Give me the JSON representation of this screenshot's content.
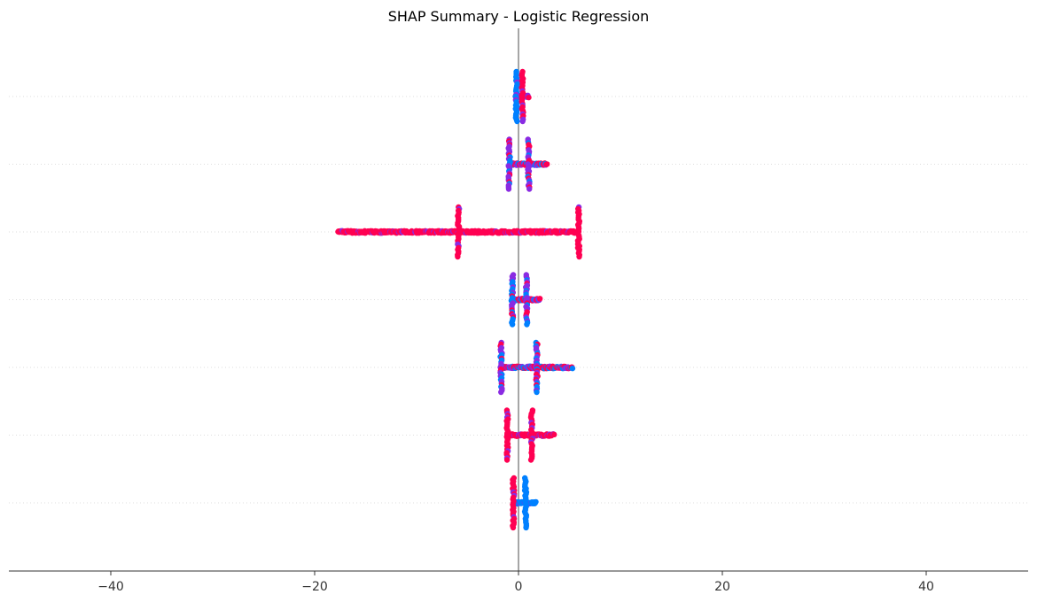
{
  "chart_data": {
    "type": "scatter",
    "title": "SHAP Summary - Logistic Regression",
    "xlabel": "",
    "ylabel": "",
    "xlim": [
      -50,
      50
    ],
    "x_ticks": [
      -40,
      -20,
      0,
      20,
      40
    ],
    "x_tick_labels": [
      "−40",
      "−20",
      "0",
      "20",
      "40"
    ],
    "feature_labels_visible": false,
    "grid": "dotted horizontal per feature row",
    "colors": {
      "high": "#ff0052",
      "mid": "#8a2be2",
      "low": "#0080ff",
      "zero_line": "#888888",
      "axis": "#333333"
    },
    "features": [
      {
        "row": 1,
        "shap_min": -0.3,
        "shap_max": 1.0,
        "clusters": [
          {
            "x": -0.2,
            "color": "low"
          },
          {
            "x": 0.4,
            "color": "high"
          }
        ],
        "tail_color": "mixed"
      },
      {
        "row": 2,
        "shap_min": -0.9,
        "shap_max": 2.8,
        "clusters": [
          {
            "x": -0.9,
            "color": "mid"
          },
          {
            "x": 1.0,
            "color": "mid"
          }
        ],
        "tail_color": "mixed"
      },
      {
        "row": 3,
        "shap_min": -17.7,
        "shap_max": 5.9,
        "clusters": [
          {
            "x": -5.9,
            "color": "high"
          },
          {
            "x": 5.9,
            "color": "high"
          }
        ],
        "tail_color": "high"
      },
      {
        "row": 4,
        "shap_min": -0.7,
        "shap_max": 2.1,
        "clusters": [
          {
            "x": -0.6,
            "color": "mid"
          },
          {
            "x": 0.8,
            "color": "mid"
          }
        ],
        "tail_color": "mixed"
      },
      {
        "row": 5,
        "shap_min": -1.7,
        "shap_max": 5.3,
        "clusters": [
          {
            "x": -1.7,
            "color": "mid"
          },
          {
            "x": 1.8,
            "color": "mid"
          }
        ],
        "tail_color": "mixed"
      },
      {
        "row": 6,
        "shap_min": -1.1,
        "shap_max": 3.5,
        "clusters": [
          {
            "x": -1.1,
            "color": "high"
          },
          {
            "x": 1.3,
            "color": "high"
          }
        ],
        "tail_color": "high"
      },
      {
        "row": 7,
        "shap_min": -0.5,
        "shap_max": 1.7,
        "clusters": [
          {
            "x": -0.5,
            "color": "high"
          },
          {
            "x": 0.7,
            "color": "low"
          }
        ],
        "tail_color": "low"
      }
    ]
  }
}
